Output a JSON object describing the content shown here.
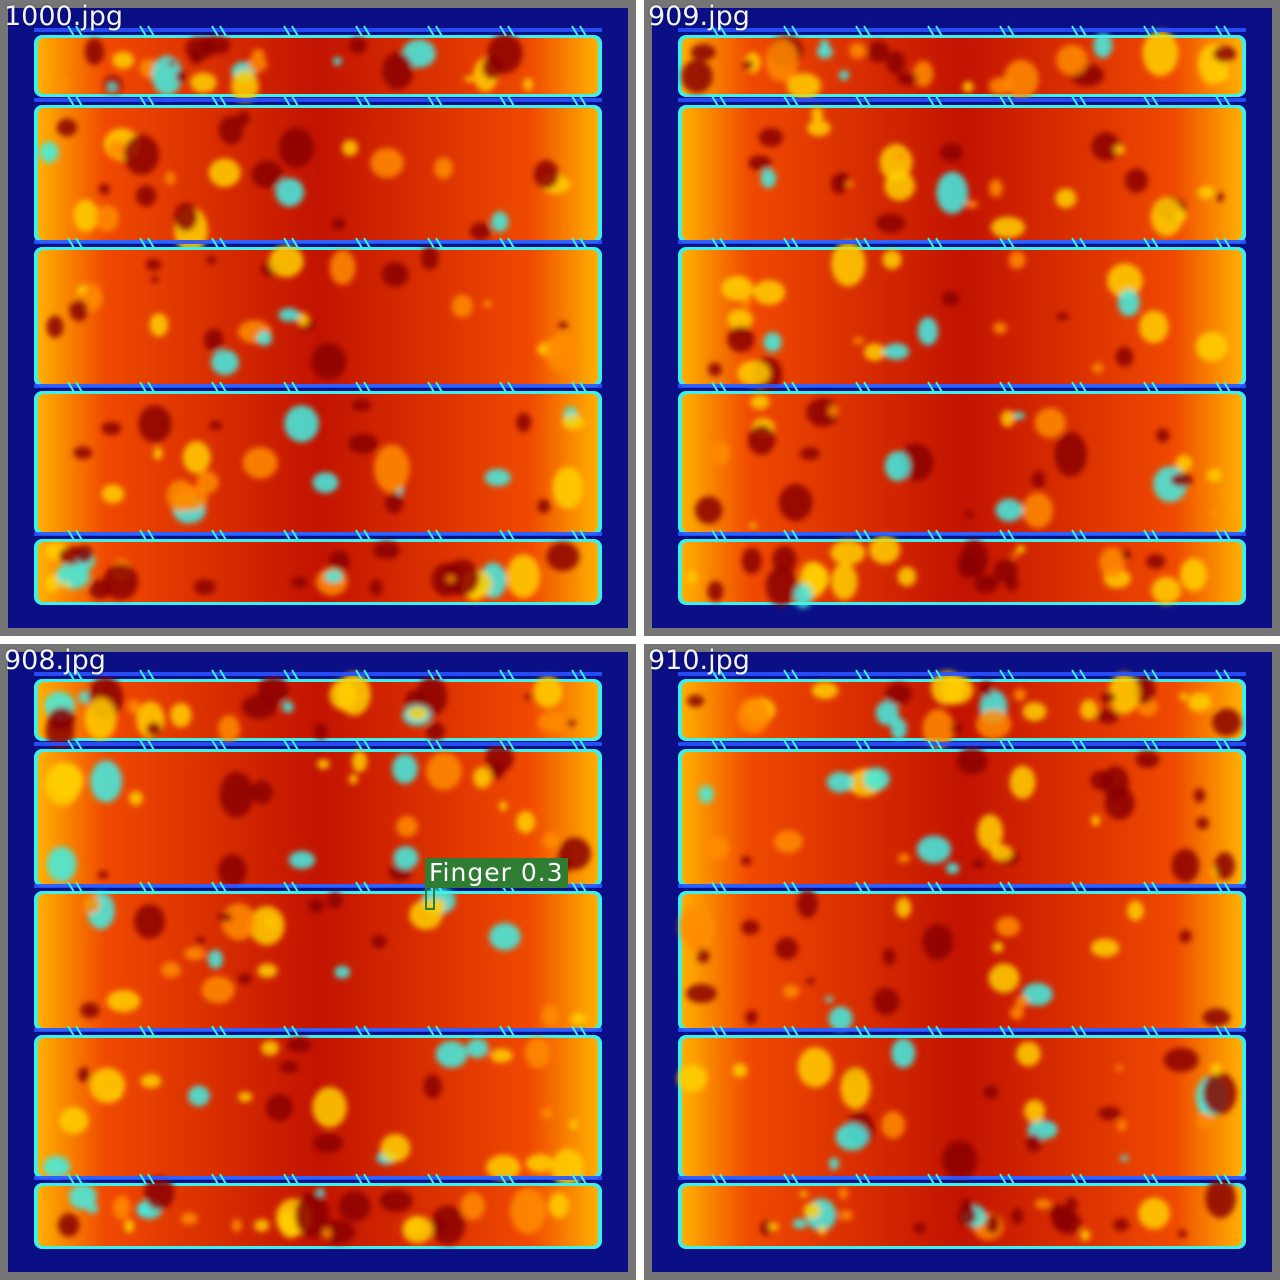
{
  "tiles": [
    {
      "filename": "1000.jpg",
      "detections": []
    },
    {
      "filename": "909.jpg",
      "detections": []
    },
    {
      "filename": "908.jpg",
      "detections": [
        {
          "label": "Finger 0.3"
        }
      ]
    },
    {
      "filename": "910.jpg",
      "detections": []
    }
  ],
  "colors": {
    "frame": "#767676",
    "background": "#0b0f86",
    "hot": "#c21300",
    "warm": "#ff7a00",
    "edge": "#3ff0e6",
    "detection": "#2e7d32"
  }
}
